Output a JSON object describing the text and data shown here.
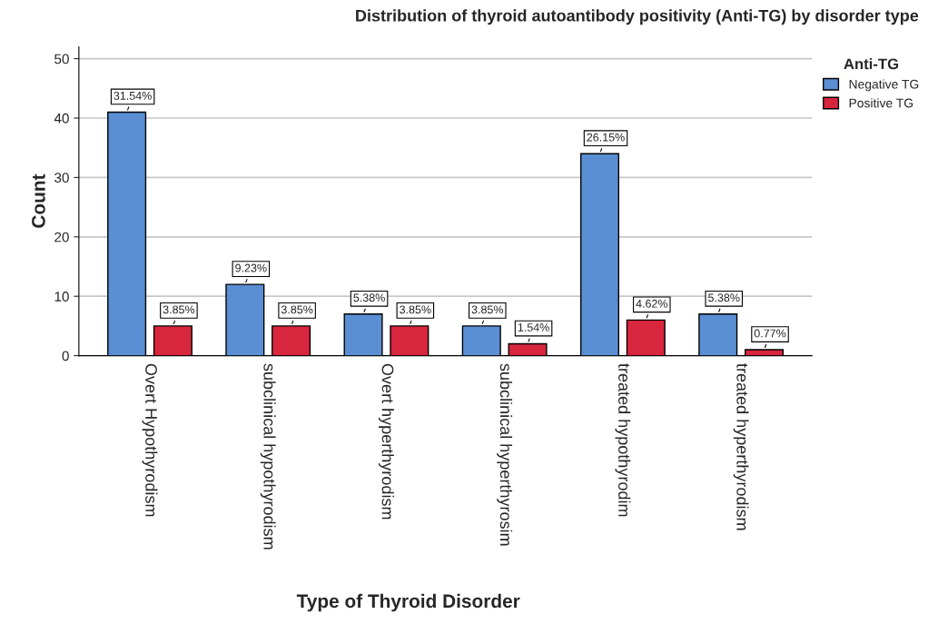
{
  "chart_data": {
    "type": "bar",
    "title": "Distribution of thyroid autoantibody positivity (Anti-TG) by disorder type",
    "xlabel": "Type of Thyroid Disorder",
    "ylabel": "Count",
    "legend_title": "Anti-TG",
    "categories": [
      "Overt Hypothyrodism",
      "subclinical hypothyrodism",
      "Overt hyperthyrodism",
      "subclinical hyperthyrosim",
      "treated hypothyrodim",
      "treated hyperthyrodism"
    ],
    "series": [
      {
        "name": "Negative TG",
        "color": "#5b8fd3",
        "values": [
          41,
          12,
          7,
          5,
          34,
          7
        ]
      },
      {
        "name": "Positive TG",
        "color": "#d7263d",
        "values": [
          5,
          5,
          5,
          2,
          6,
          1
        ]
      }
    ],
    "annotations": [
      {
        "text": "31.54%",
        "x": "Overt Hypothyrodism",
        "y": 41
      },
      {
        "text": "3.85%",
        "x": "Overt Hypothyrodism",
        "y": 5
      },
      {
        "text": "9.23%",
        "x": "subclinical hypothyrodism",
        "y": 12
      },
      {
        "text": "3.85%",
        "x": "subclinical hypothyrodism",
        "y": 5
      },
      {
        "text": "5.38%",
        "x": "Overt hyperthyrodism",
        "y": 7
      },
      {
        "text": "3.85%",
        "x": "Overt hyperthyrodism",
        "y": 5
      },
      {
        "text": "3.85%",
        "x": "subclinical hyperthyrosim",
        "y": 5
      },
      {
        "text": "1.54%",
        "x": "subclinical hyperthyrosim",
        "y": 2
      },
      {
        "text": "26.15%",
        "x": "treated hypothyrodim",
        "y": 34
      },
      {
        "text": "4.62%",
        "x": "treated hypothyrodim",
        "y": 6
      },
      {
        "text": "5.38%",
        "x": "treated hyperthyrodism",
        "y": 7
      },
      {
        "text": "0.77%",
        "x": "treated hyperthyrodism",
        "y": 1
      }
    ],
    "ylim": [
      0,
      52
    ],
    "yticks": [
      0,
      10,
      20,
      30,
      40,
      50
    ],
    "grid": "y",
    "legend": "top right"
  }
}
